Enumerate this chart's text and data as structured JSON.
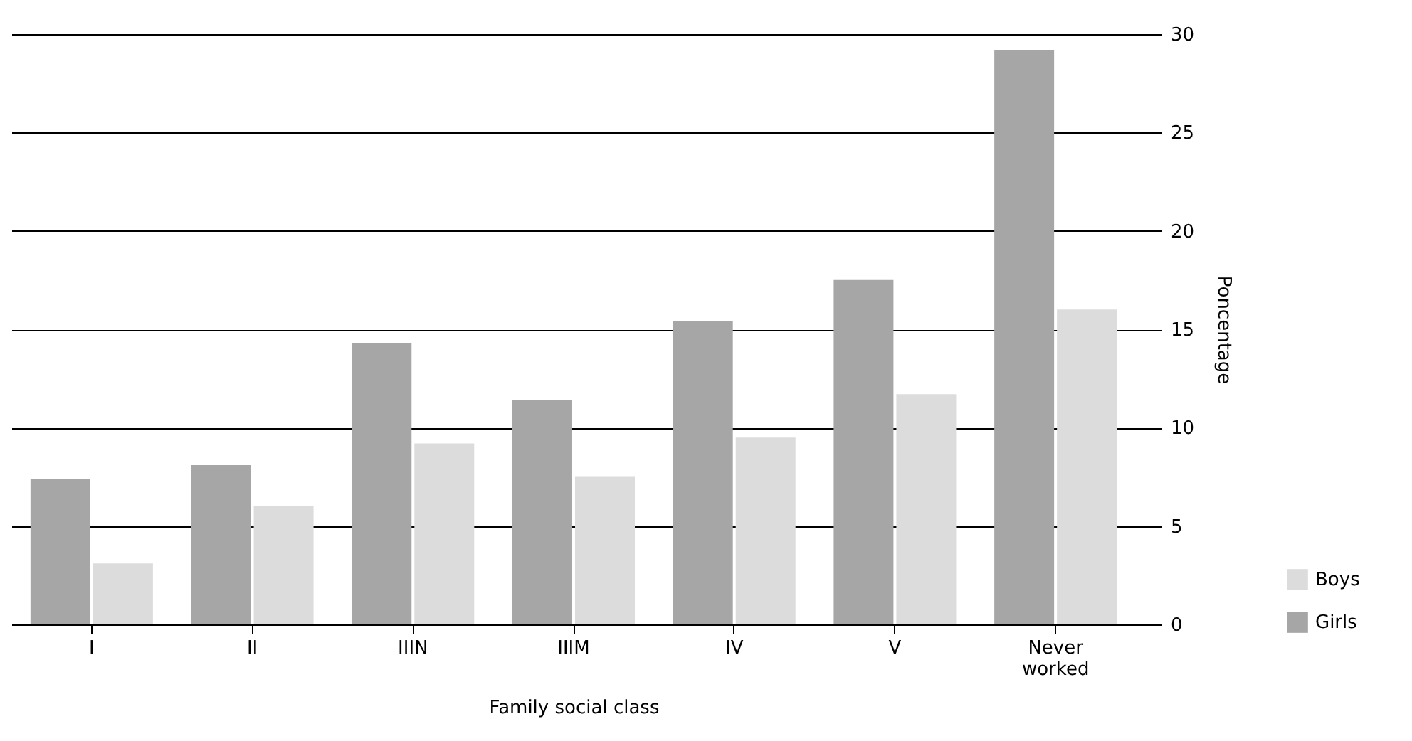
{
  "chart_data": {
    "type": "bar",
    "xlabel": "Family social class",
    "ylabel": "Poncentage",
    "categories": [
      "I",
      "II",
      "IIIN",
      "IIIM",
      "IV",
      "V",
      "Never worked"
    ],
    "series": [
      {
        "name": "Girls",
        "color": "#a6a6a6",
        "values": [
          7.4,
          8.1,
          14.3,
          11.4,
          15.4,
          17.5,
          29.2
        ]
      },
      {
        "name": "Boys",
        "color": "#dcdcdc",
        "values": [
          3.1,
          6.0,
          9.2,
          7.5,
          9.5,
          11.7,
          16.0
        ]
      }
    ],
    "ylim": [
      0,
      30
    ],
    "yticks": [
      0,
      5,
      10,
      15,
      20,
      25,
      30
    ],
    "grid": "y",
    "legend": "bottom right"
  }
}
